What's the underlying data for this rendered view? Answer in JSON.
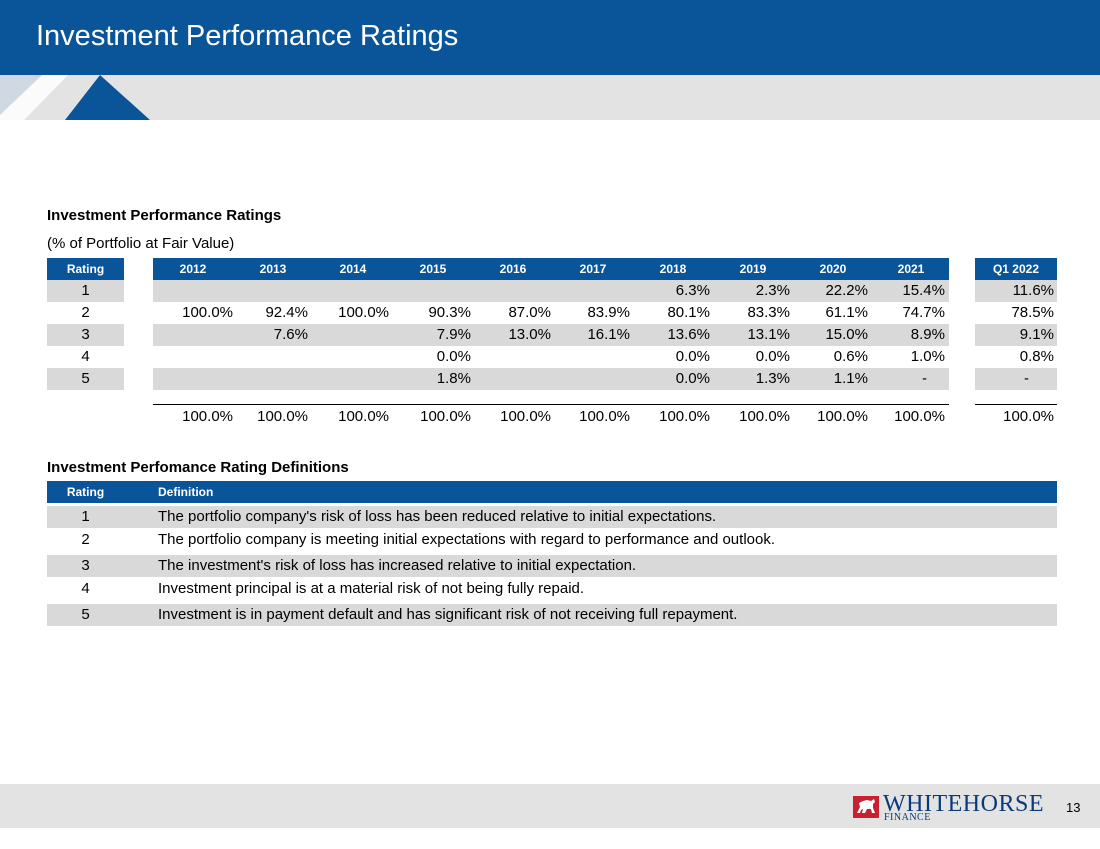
{
  "header": {
    "title": "Investment Performance Ratings"
  },
  "ratings_table": {
    "title": "Investment Performance Ratings",
    "subtitle": "(% of Portfolio at Fair Value)",
    "rating_header": "Rating",
    "years": [
      "2012",
      "2013",
      "2014",
      "2015",
      "2016",
      "2017",
      "2018",
      "2019",
      "2020",
      "2021"
    ],
    "q_header": "Q1 2022",
    "rows": [
      {
        "rating": "1",
        "values": [
          "",
          "",
          "",
          "",
          "",
          "",
          "6.3%",
          "2.3%",
          "22.2%",
          "15.4%"
        ],
        "q": "11.6%"
      },
      {
        "rating": "2",
        "values": [
          "100.0%",
          "92.4%",
          "100.0%",
          "90.3%",
          "87.0%",
          "83.9%",
          "80.1%",
          "83.3%",
          "61.1%",
          "74.7%"
        ],
        "q": "78.5%"
      },
      {
        "rating": "3",
        "values": [
          "",
          "7.6%",
          "",
          "7.9%",
          "13.0%",
          "16.1%",
          "13.6%",
          "13.1%",
          "15.0%",
          "8.9%"
        ],
        "q": "9.1%"
      },
      {
        "rating": "4",
        "values": [
          "",
          "",
          "",
          "0.0%",
          "",
          "",
          "0.0%",
          "0.0%",
          "0.6%",
          "1.0%"
        ],
        "q": "0.8%"
      },
      {
        "rating": "5",
        "values": [
          "",
          "",
          "",
          "1.8%",
          "",
          "",
          "0.0%",
          "1.3%",
          "1.1%",
          "-"
        ],
        "q": "-"
      }
    ],
    "totals": {
      "values": [
        "100.0%",
        "100.0%",
        "100.0%",
        "100.0%",
        "100.0%",
        "100.0%",
        "100.0%",
        "100.0%",
        "100.0%",
        "100.0%"
      ],
      "q": "100.0%"
    }
  },
  "definitions_table": {
    "title": "Investment Perfomance Rating Definitions",
    "rating_header": "Rating",
    "definition_header": "Definition",
    "rows": [
      {
        "rating": "1",
        "definition": "The portfolio company's risk of loss has been reduced relative to initial expectations."
      },
      {
        "rating": "2",
        "definition": "The portfolio company is meeting initial expectations with regard to performance and outlook."
      },
      {
        "rating": "3",
        "definition": "The investment's risk of loss has increased relative to initial expectation."
      },
      {
        "rating": "4",
        "definition": "Investment principal is at a material risk of not being fully repaid."
      },
      {
        "rating": "5",
        "definition": "Investment is in payment default and has significant risk of not receiving full repayment."
      }
    ]
  },
  "footer": {
    "logo_name": "WHITEHORSE",
    "logo_sub": "FINANCE",
    "page_number": "13",
    "brand_color": "#0a5599"
  }
}
